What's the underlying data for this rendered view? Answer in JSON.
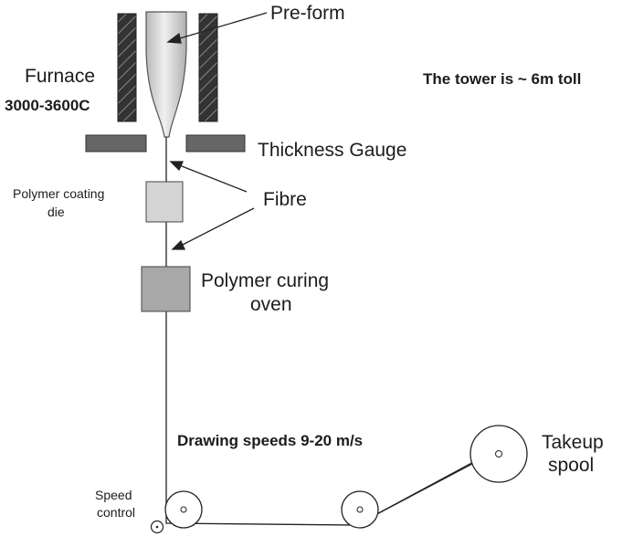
{
  "labels": {
    "preform": "Pre-form",
    "furnace": "Furnace",
    "furnace_temp": "3000-3600C",
    "tower_height": "The tower is ~ 6m toll",
    "thickness_gauge": "Thickness Gauge",
    "coating_die_line1": "Polymer coating",
    "coating_die_line2": "die",
    "fibre": "Fibre",
    "curing_oven_line1": "Polymer curing",
    "curing_oven_line2": "oven",
    "drawing_speeds": "Drawing speeds 9-20 m/s",
    "takeup_line1": "Takeup",
    "takeup_line2": "spool",
    "speed_control_line1": "Speed",
    "speed_control_line2": "control"
  },
  "colors": {
    "stroke": "#222222",
    "furnace_wall_fill": "#333333",
    "gauge_fill": "#666666",
    "coating_die_fill": "#d4d4d4",
    "curing_oven_fill": "#a8a8a8",
    "preform_fill": "#cccccc"
  }
}
